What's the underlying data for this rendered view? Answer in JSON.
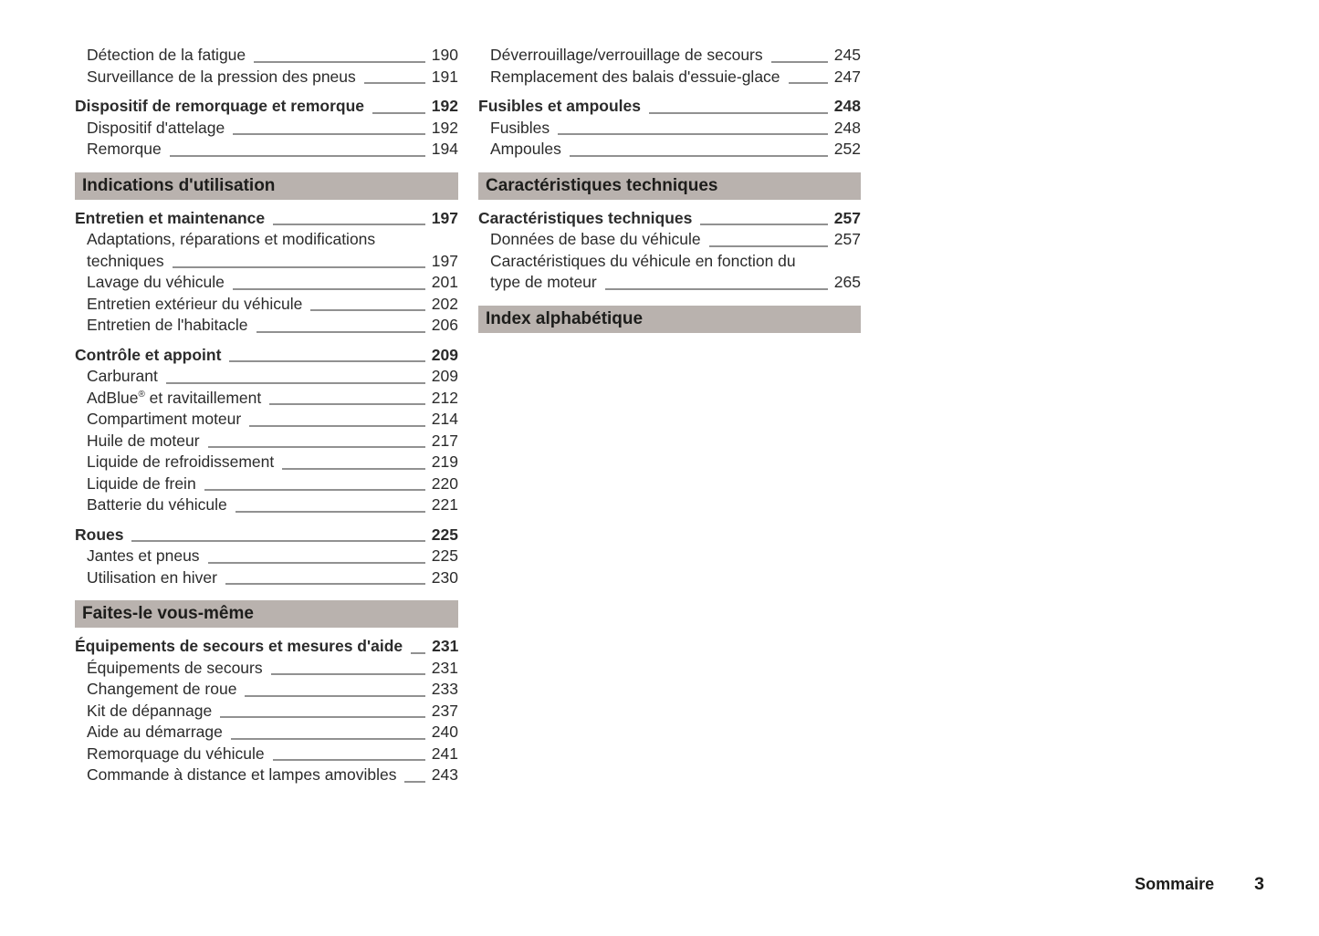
{
  "colors": {
    "section_header_bg": "#b9b2ae",
    "text": "#2b2b2b",
    "leader_line": "#919191"
  },
  "footer": {
    "label": "Sommaire",
    "page_number": "3"
  },
  "columns": [
    {
      "blocks": [
        {
          "type": "group",
          "items": [
            {
              "text": "Détection de la fatigue",
              "page": "190",
              "indent": true
            },
            {
              "text": "Surveillance de la pression des pneus",
              "page": "191",
              "indent": true
            }
          ]
        },
        {
          "type": "group",
          "items": [
            {
              "text": "Dispositif de remorquage et remorque",
              "page": "192",
              "bold": true
            },
            {
              "text": "Dispositif d'attelage",
              "page": "192",
              "indent": true
            },
            {
              "text": "Remorque",
              "page": "194",
              "indent": true
            }
          ]
        },
        {
          "type": "section_header",
          "text": "Indications d'utilisation"
        },
        {
          "type": "group",
          "items": [
            {
              "text": "Entretien et maintenance",
              "page": "197",
              "bold": true
            },
            {
              "text": "Adaptations, réparations et modifications",
              "text2": "techniques",
              "page": "197",
              "indent": true
            },
            {
              "text": "Lavage du véhicule",
              "page": "201",
              "indent": true
            },
            {
              "text": "Entretien extérieur du véhicule",
              "page": "202",
              "indent": true
            },
            {
              "text": "Entretien de l'habitacle",
              "page": "206",
              "indent": true
            }
          ]
        },
        {
          "type": "group",
          "items": [
            {
              "text": "Contrôle et appoint",
              "page": "209",
              "bold": true
            },
            {
              "text": "Carburant",
              "page": "209",
              "indent": true
            },
            {
              "text": "AdBlue® et ravitaillement",
              "page": "212",
              "indent": true
            },
            {
              "text": "Compartiment moteur",
              "page": "214",
              "indent": true
            },
            {
              "text": "Huile de moteur",
              "page": "217",
              "indent": true
            },
            {
              "text": "Liquide de refroidissement",
              "page": "219",
              "indent": true
            },
            {
              "text": "Liquide de frein",
              "page": "220",
              "indent": true
            },
            {
              "text": "Batterie du véhicule",
              "page": "221",
              "indent": true
            }
          ]
        },
        {
          "type": "group",
          "items": [
            {
              "text": "Roues",
              "page": "225",
              "bold": true
            },
            {
              "text": "Jantes et pneus",
              "page": "225",
              "indent": true
            },
            {
              "text": "Utilisation en hiver",
              "page": "230",
              "indent": true
            }
          ]
        },
        {
          "type": "section_header",
          "text": "Faites-le vous-même"
        },
        {
          "type": "group",
          "items": [
            {
              "text": "Équipements de secours et mesures d'aide",
              "page": "231",
              "bold": true
            },
            {
              "text": "Équipements de secours",
              "page": "231",
              "indent": true
            },
            {
              "text": "Changement de roue",
              "page": "233",
              "indent": true
            },
            {
              "text": "Kit de dépannage",
              "page": "237",
              "indent": true
            },
            {
              "text": "Aide au démarrage",
              "page": "240",
              "indent": true
            },
            {
              "text": "Remorquage du véhicule",
              "page": "241",
              "indent": true
            },
            {
              "text": "Commande à distance et lampes amovibles",
              "page": "243",
              "indent": true
            }
          ]
        }
      ]
    },
    {
      "blocks": [
        {
          "type": "group",
          "items": [
            {
              "text": "Déverrouillage/verrouillage de secours",
              "page": "245",
              "indent": true
            },
            {
              "text": "Remplacement des balais d'essuie-glace",
              "page": "247",
              "indent": true
            }
          ]
        },
        {
          "type": "group",
          "items": [
            {
              "text": "Fusibles et ampoules",
              "page": "248",
              "bold": true
            },
            {
              "text": "Fusibles",
              "page": "248",
              "indent": true
            },
            {
              "text": "Ampoules",
              "page": "252",
              "indent": true
            }
          ]
        },
        {
          "type": "section_header",
          "text": "Caractéristiques techniques"
        },
        {
          "type": "group",
          "items": [
            {
              "text": "Caractéristiques techniques",
              "page": "257",
              "bold": true
            },
            {
              "text": "Données de base du véhicule",
              "page": "257",
              "indent": true
            },
            {
              "text": "Caractéristiques du véhicule en fonction du",
              "text2": "type de moteur",
              "page": "265",
              "indent": true
            }
          ]
        },
        {
          "type": "section_header",
          "text": "Index alphabétique"
        }
      ]
    }
  ]
}
